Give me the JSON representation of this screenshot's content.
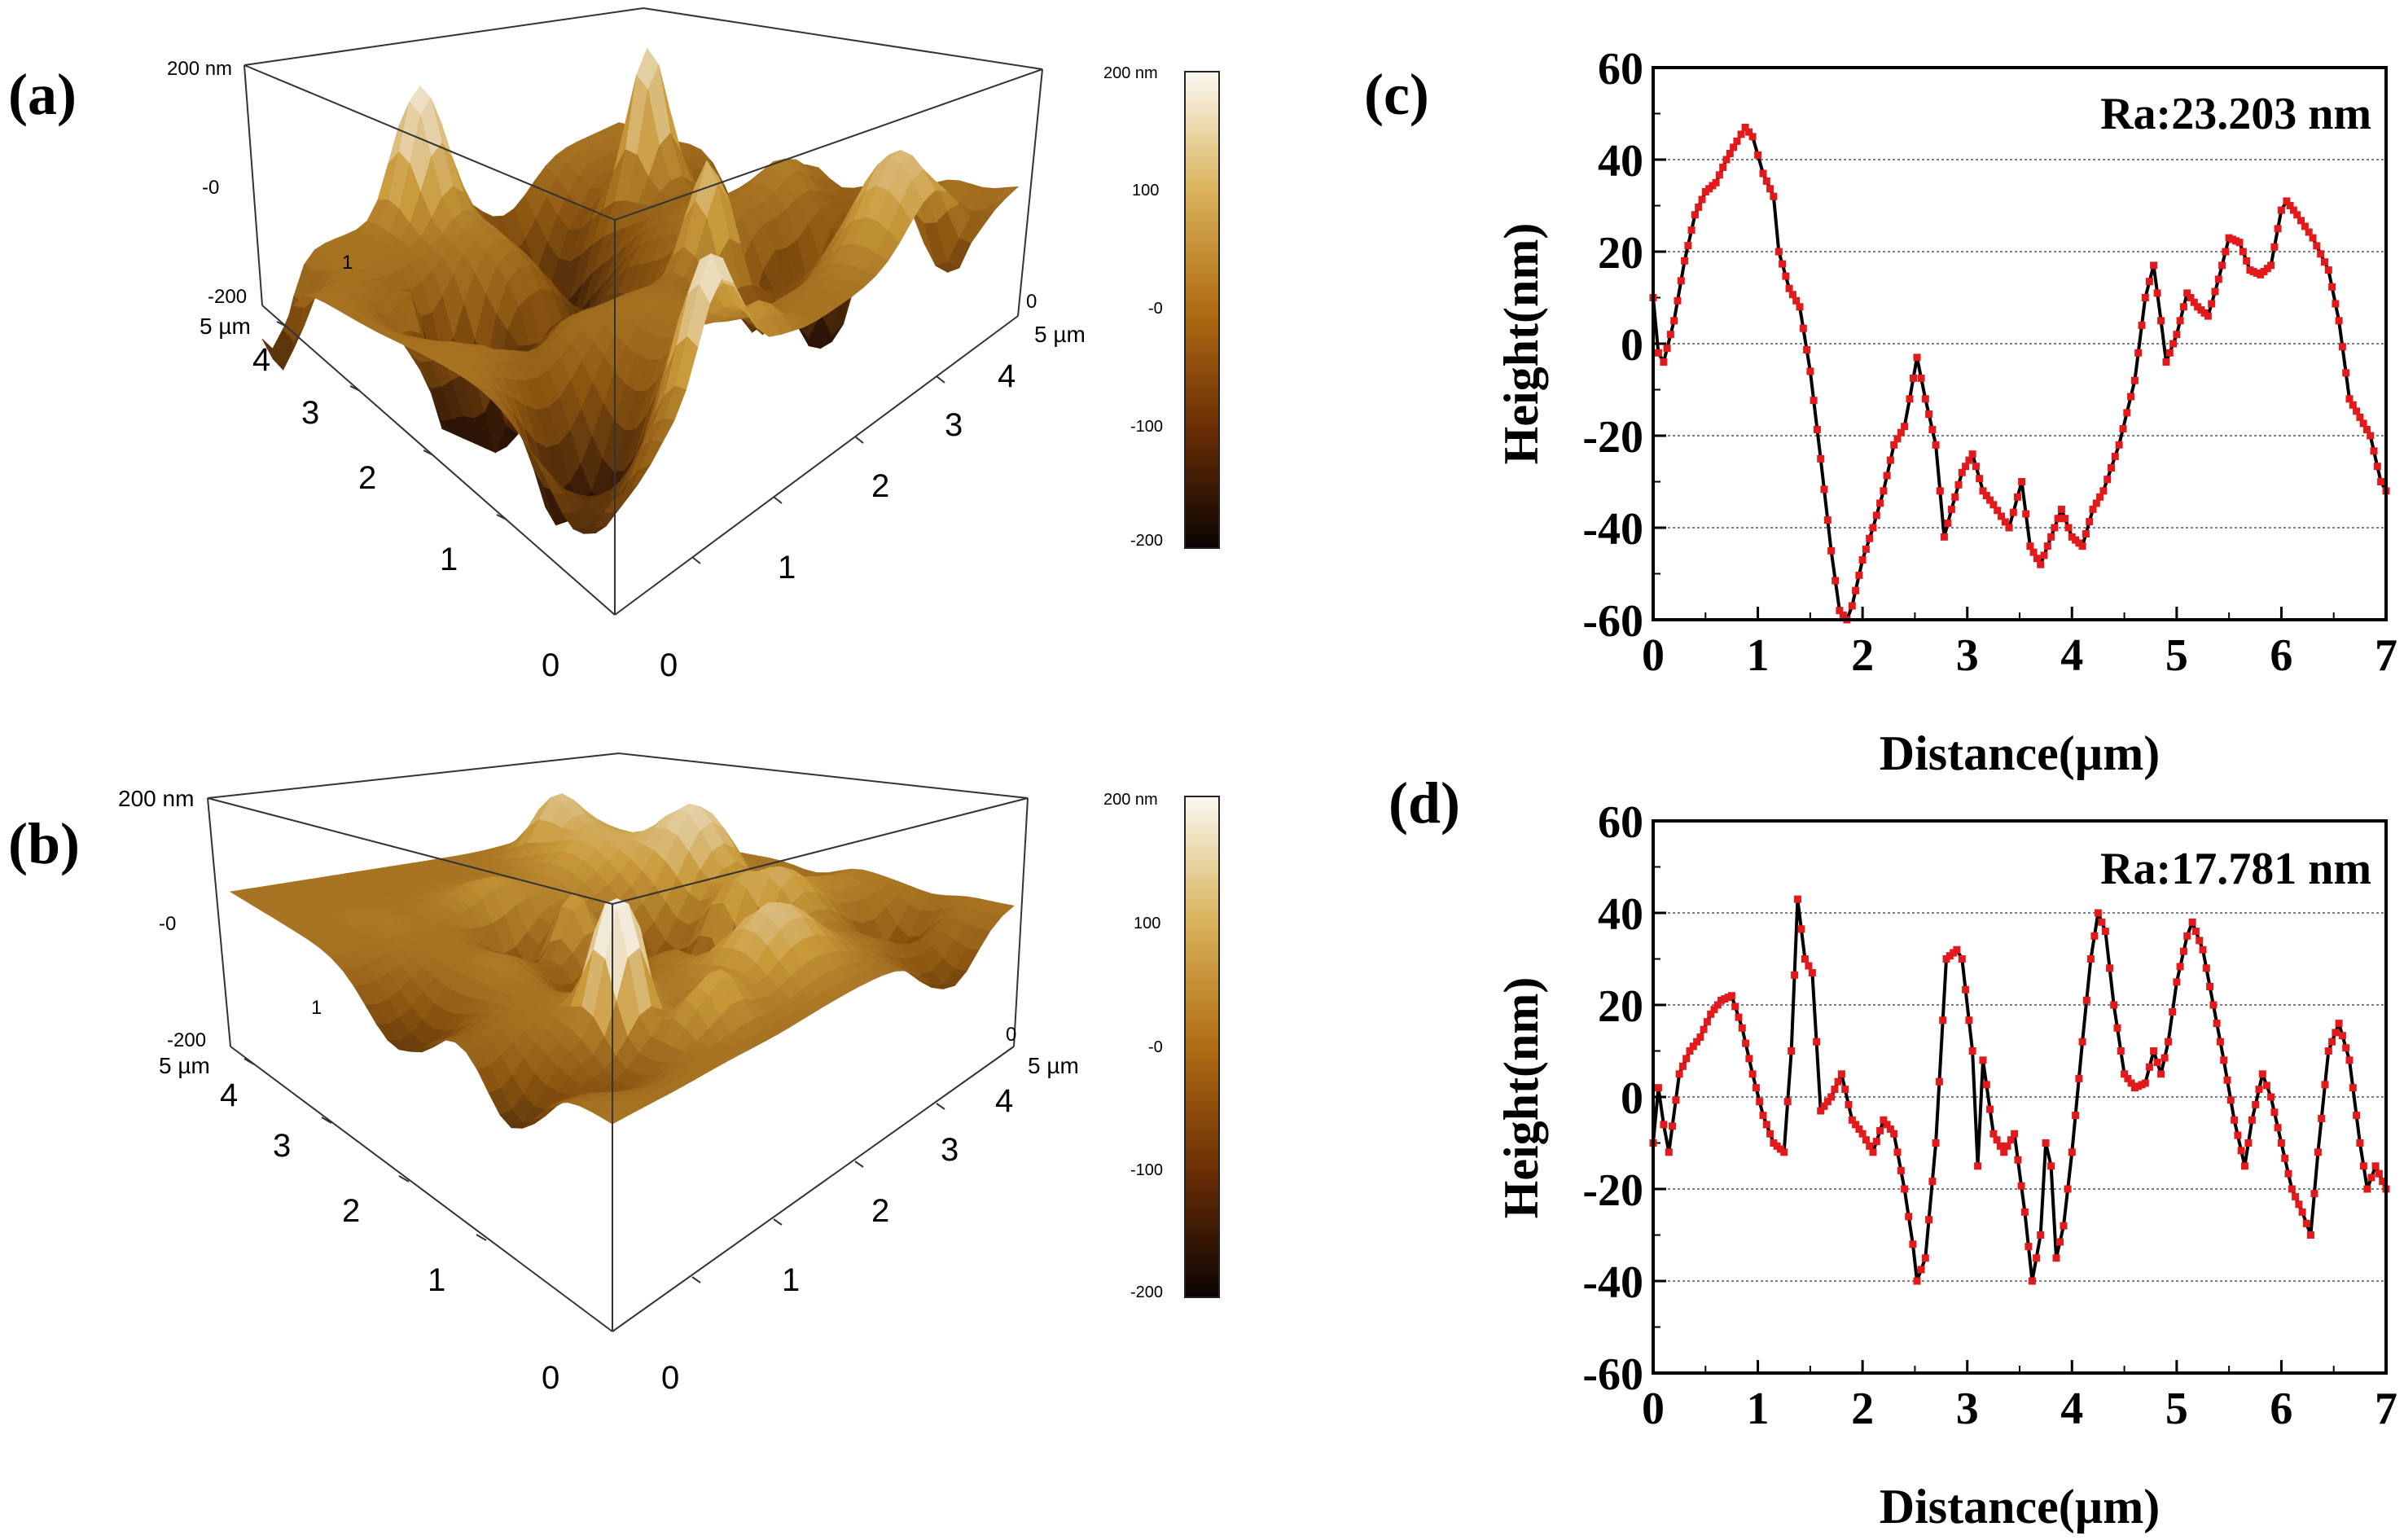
{
  "panel_labels": {
    "a": "(a)",
    "b": "(b)",
    "c": "(c)",
    "d": "(d)"
  },
  "colors": {
    "afm_dark": "#2a1206",
    "afm_mid": "#8a5410",
    "afm_light": "#c99a3a",
    "afm_high": "#f6f1e6",
    "profile_line": "#000000",
    "profile_marker": "#e31a1c",
    "grid": "#555555"
  },
  "afm_images": [
    {
      "id": "a",
      "z_labels": [
        "200 nm",
        "-0",
        "-200"
      ],
      "corner_labels": [
        "1",
        "0"
      ],
      "x_axis": {
        "ticks": [
          "0",
          "1",
          "2",
          "3",
          "4"
        ],
        "end": "5 µm"
      },
      "y_axis": {
        "ticks": [
          "0",
          "1",
          "2",
          "3",
          "4"
        ],
        "end": "5 µm"
      },
      "colorbar_labels": [
        "200 nm",
        "100",
        "-0",
        "-100",
        "-200"
      ],
      "roughness_level": 1.0
    },
    {
      "id": "b",
      "z_labels": [
        "200 nm",
        "-0",
        "-200"
      ],
      "corner_labels": [
        "1",
        "0"
      ],
      "x_axis": {
        "ticks": [
          "0",
          "1",
          "2",
          "3",
          "4"
        ],
        "end": "5 µm"
      },
      "y_axis": {
        "ticks": [
          "0",
          "1",
          "2",
          "3",
          "4"
        ],
        "end": "5 µm"
      },
      "colorbar_labels": [
        "200 nm",
        "100",
        "-0",
        "-100",
        "-200"
      ],
      "roughness_level": 0.55
    }
  ],
  "chart_data": [
    {
      "id": "c",
      "type": "line",
      "title": "",
      "annotation": "Ra:23.203 nm",
      "xlabel": "Distance(µm)",
      "ylabel": "Height(nm)",
      "xlim": [
        0,
        7
      ],
      "ylim": [
        -60,
        60
      ],
      "xticks": [
        0,
        1,
        2,
        3,
        4,
        5,
        6,
        7
      ],
      "yticks": [
        -60,
        -40,
        -20,
        0,
        20,
        40,
        60
      ],
      "grid": true,
      "series": [
        {
          "name": "profile",
          "points": [
            [
              0,
              10
            ],
            [
              0.05,
              -2
            ],
            [
              0.1,
              -4
            ],
            [
              0.2,
              5
            ],
            [
              0.3,
              18
            ],
            [
              0.4,
              28
            ],
            [
              0.5,
              33
            ],
            [
              0.6,
              35
            ],
            [
              0.7,
              40
            ],
            [
              0.8,
              44
            ],
            [
              0.88,
              47
            ],
            [
              0.95,
              45
            ],
            [
              1.0,
              41
            ],
            [
              1.05,
              37
            ],
            [
              1.15,
              32
            ],
            [
              1.2,
              20
            ],
            [
              1.3,
              12
            ],
            [
              1.4,
              8
            ],
            [
              1.5,
              -6
            ],
            [
              1.6,
              -25
            ],
            [
              1.7,
              -45
            ],
            [
              1.78,
              -58
            ],
            [
              1.85,
              -60
            ],
            [
              1.9,
              -57
            ],
            [
              2.0,
              -47
            ],
            [
              2.1,
              -40
            ],
            [
              2.2,
              -32
            ],
            [
              2.3,
              -22
            ],
            [
              2.4,
              -18
            ],
            [
              2.45,
              -12
            ],
            [
              2.52,
              -3
            ],
            [
              2.6,
              -12
            ],
            [
              2.7,
              -22
            ],
            [
              2.78,
              -42
            ],
            [
              2.85,
              -36
            ],
            [
              2.95,
              -28
            ],
            [
              3.05,
              -24
            ],
            [
              3.15,
              -32
            ],
            [
              3.25,
              -35
            ],
            [
              3.4,
              -40
            ],
            [
              3.52,
              -30
            ],
            [
              3.6,
              -44
            ],
            [
              3.7,
              -48
            ],
            [
              3.8,
              -42
            ],
            [
              3.9,
              -36
            ],
            [
              4.0,
              -42
            ],
            [
              4.1,
              -44
            ],
            [
              4.2,
              -36
            ],
            [
              4.3,
              -32
            ],
            [
              4.45,
              -22
            ],
            [
              4.6,
              -8
            ],
            [
              4.7,
              10
            ],
            [
              4.78,
              17
            ],
            [
              4.85,
              5
            ],
            [
              4.9,
              -4
            ],
            [
              5.0,
              2
            ],
            [
              5.1,
              11
            ],
            [
              5.2,
              8
            ],
            [
              5.3,
              6
            ],
            [
              5.4,
              14
            ],
            [
              5.5,
              23
            ],
            [
              5.6,
              22
            ],
            [
              5.7,
              16
            ],
            [
              5.8,
              15
            ],
            [
              5.9,
              17
            ],
            [
              6.0,
              29
            ],
            [
              6.05,
              31
            ],
            [
              6.15,
              28
            ],
            [
              6.3,
              23
            ],
            [
              6.45,
              16
            ],
            [
              6.55,
              5
            ],
            [
              6.65,
              -12
            ],
            [
              6.75,
              -16
            ],
            [
              6.85,
              -20
            ],
            [
              6.95,
              -30
            ],
            [
              7.0,
              -32
            ]
          ]
        }
      ]
    },
    {
      "id": "d",
      "type": "line",
      "title": "",
      "annotation": "Ra:17.781 nm",
      "xlabel": "Distance(µm)",
      "ylabel": "Height(nm)",
      "xlim": [
        0,
        7
      ],
      "ylim": [
        -60,
        60
      ],
      "xticks": [
        0,
        1,
        2,
        3,
        4,
        5,
        6,
        7
      ],
      "yticks": [
        -60,
        -40,
        -20,
        0,
        20,
        40,
        60
      ],
      "grid": true,
      "series": [
        {
          "name": "profile",
          "points": [
            [
              0,
              -10
            ],
            [
              0.05,
              2
            ],
            [
              0.1,
              -6
            ],
            [
              0.15,
              -12
            ],
            [
              0.25,
              5
            ],
            [
              0.35,
              10
            ],
            [
              0.45,
              13
            ],
            [
              0.55,
              18
            ],
            [
              0.65,
              21
            ],
            [
              0.75,
              22
            ],
            [
              0.85,
              15
            ],
            [
              0.95,
              5
            ],
            [
              1.05,
              -4
            ],
            [
              1.15,
              -10
            ],
            [
              1.25,
              -12
            ],
            [
              1.32,
              10
            ],
            [
              1.38,
              43
            ],
            [
              1.45,
              30
            ],
            [
              1.52,
              27
            ],
            [
              1.6,
              -3
            ],
            [
              1.7,
              0
            ],
            [
              1.8,
              5
            ],
            [
              1.9,
              -5
            ],
            [
              2.0,
              -8
            ],
            [
              2.1,
              -12
            ],
            [
              2.2,
              -5
            ],
            [
              2.3,
              -8
            ],
            [
              2.4,
              -20
            ],
            [
              2.48,
              -32
            ],
            [
              2.52,
              -40
            ],
            [
              2.6,
              -35
            ],
            [
              2.7,
              -10
            ],
            [
              2.8,
              30
            ],
            [
              2.9,
              32
            ],
            [
              2.95,
              30
            ],
            [
              3.05,
              10
            ],
            [
              3.1,
              -15
            ],
            [
              3.15,
              8
            ],
            [
              3.25,
              -8
            ],
            [
              3.35,
              -12
            ],
            [
              3.45,
              -8
            ],
            [
              3.55,
              -25
            ],
            [
              3.62,
              -40
            ],
            [
              3.7,
              -30
            ],
            [
              3.75,
              -10
            ],
            [
              3.8,
              -15
            ],
            [
              3.85,
              -35
            ],
            [
              3.92,
              -28
            ],
            [
              4.0,
              -12
            ],
            [
              4.1,
              12
            ],
            [
              4.18,
              30
            ],
            [
              4.25,
              40
            ],
            [
              4.32,
              36
            ],
            [
              4.4,
              20
            ],
            [
              4.5,
              5
            ],
            [
              4.6,
              2
            ],
            [
              4.7,
              3
            ],
            [
              4.78,
              10
            ],
            [
              4.85,
              5
            ],
            [
              4.92,
              12
            ],
            [
              5.0,
              25
            ],
            [
              5.1,
              35
            ],
            [
              5.15,
              38
            ],
            [
              5.25,
              32
            ],
            [
              5.35,
              20
            ],
            [
              5.45,
              8
            ],
            [
              5.55,
              -5
            ],
            [
              5.65,
              -15
            ],
            [
              5.72,
              -5
            ],
            [
              5.82,
              5
            ],
            [
              5.9,
              0
            ],
            [
              6.0,
              -10
            ],
            [
              6.1,
              -20
            ],
            [
              6.2,
              -25
            ],
            [
              6.28,
              -30
            ],
            [
              6.35,
              -12
            ],
            [
              6.45,
              10
            ],
            [
              6.55,
              16
            ],
            [
              6.65,
              8
            ],
            [
              6.75,
              -10
            ],
            [
              6.82,
              -20
            ],
            [
              6.9,
              -15
            ],
            [
              7.0,
              -20
            ]
          ]
        }
      ]
    }
  ]
}
